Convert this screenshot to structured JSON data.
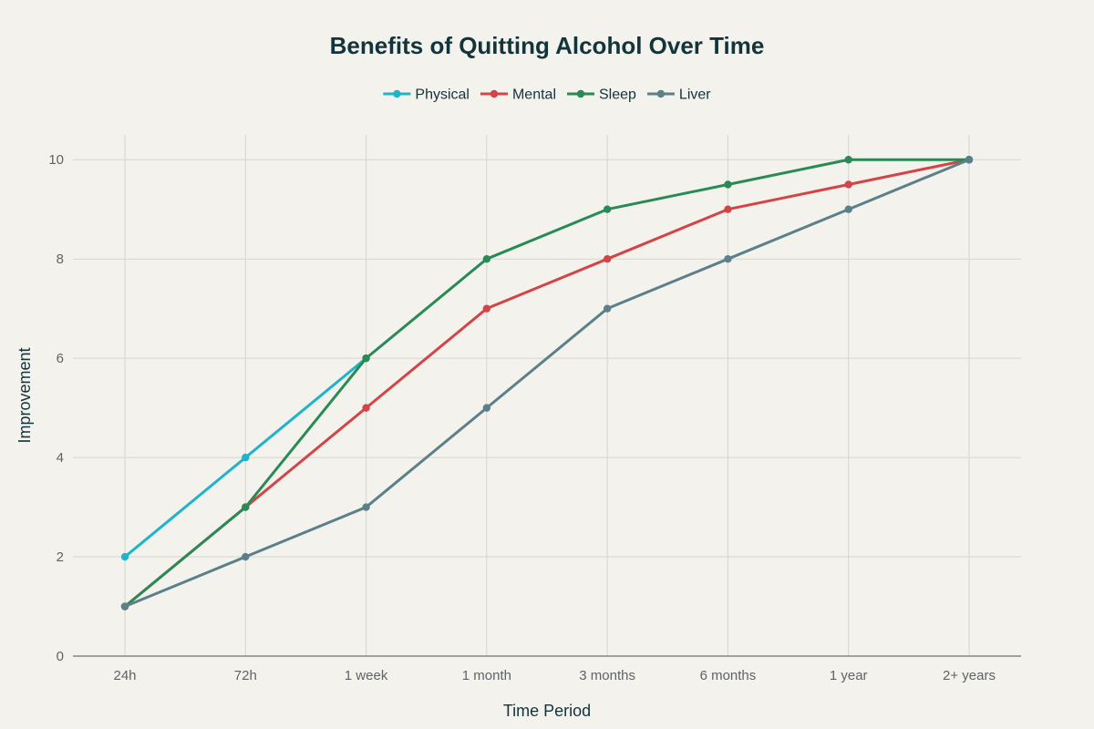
{
  "chart_data": {
    "type": "line",
    "title": "Benefits of Quitting Alcohol Over Time",
    "xlabel": "Time Period",
    "ylabel": "Improvement",
    "categories": [
      "24h",
      "72h",
      "1 week",
      "1 month",
      "3 months",
      "6 months",
      "1 year",
      "2+ years"
    ],
    "ylim": [
      0,
      10.5
    ],
    "yticks": [
      0,
      2,
      4,
      6,
      8,
      10
    ],
    "grid": true,
    "legend_position": "top-center",
    "series": [
      {
        "name": "Physical",
        "color": "#1fb4c9",
        "values": [
          2,
          4,
          6,
          null,
          null,
          null,
          null,
          null
        ]
      },
      {
        "name": "Mental",
        "color": "#d44446",
        "values": [
          1,
          3,
          5,
          7,
          8,
          9,
          9.5,
          10
        ]
      },
      {
        "name": "Sleep",
        "color": "#2a8a55",
        "values": [
          1,
          3,
          6,
          8,
          9,
          9.5,
          10,
          10
        ]
      },
      {
        "name": "Liver",
        "color": "#5c8089",
        "values": [
          1,
          2,
          3,
          5,
          7,
          8,
          9,
          10
        ]
      }
    ]
  }
}
